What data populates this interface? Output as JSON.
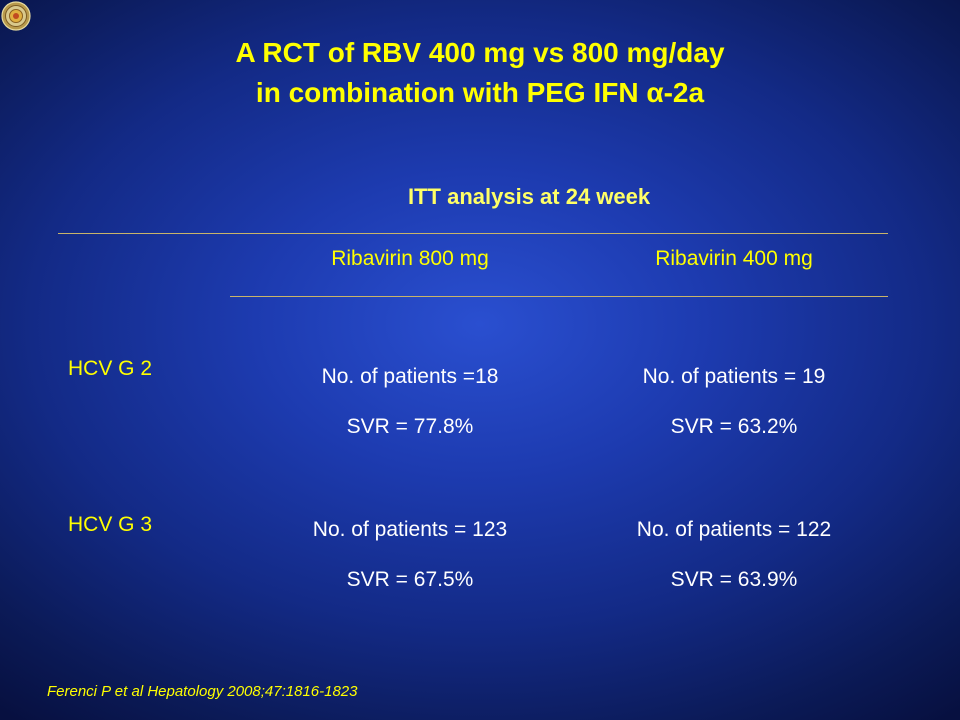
{
  "title": {
    "line1": "A RCT of RBV 400 mg vs 800 mg/day",
    "line2_prefix": "in combination with PEG IFN ",
    "line2_alpha": "α",
    "line2_suffix": "-2a"
  },
  "subtitle": "ITT analysis at 24 week",
  "columns": [
    "Ribavirin 800 mg",
    "Ribavirin 400 mg"
  ],
  "rows": [
    {
      "label": "HCV G 2",
      "cells": [
        {
          "patients": "No. of patients =18",
          "svr": "SVR = 77.8%"
        },
        {
          "patients": "No. of patients = 19",
          "svr": "SVR = 63.2%"
        }
      ]
    },
    {
      "label": "HCV G 3",
      "cells": [
        {
          "patients": "No. of patients = 123",
          "svr": "SVR = 67.5%"
        },
        {
          "patients": "No. of patients = 122",
          "svr": "SVR = 63.9%"
        }
      ]
    }
  ],
  "citation": "Ferenci P et al Hepatology 2008;47:1816-1823",
  "colors": {
    "background": "#1d3bb0",
    "title": "#ffff00",
    "body_text": "#ffffff",
    "rule": "#c8b46a"
  },
  "icons": {
    "logo": "seal-logo-icon"
  }
}
